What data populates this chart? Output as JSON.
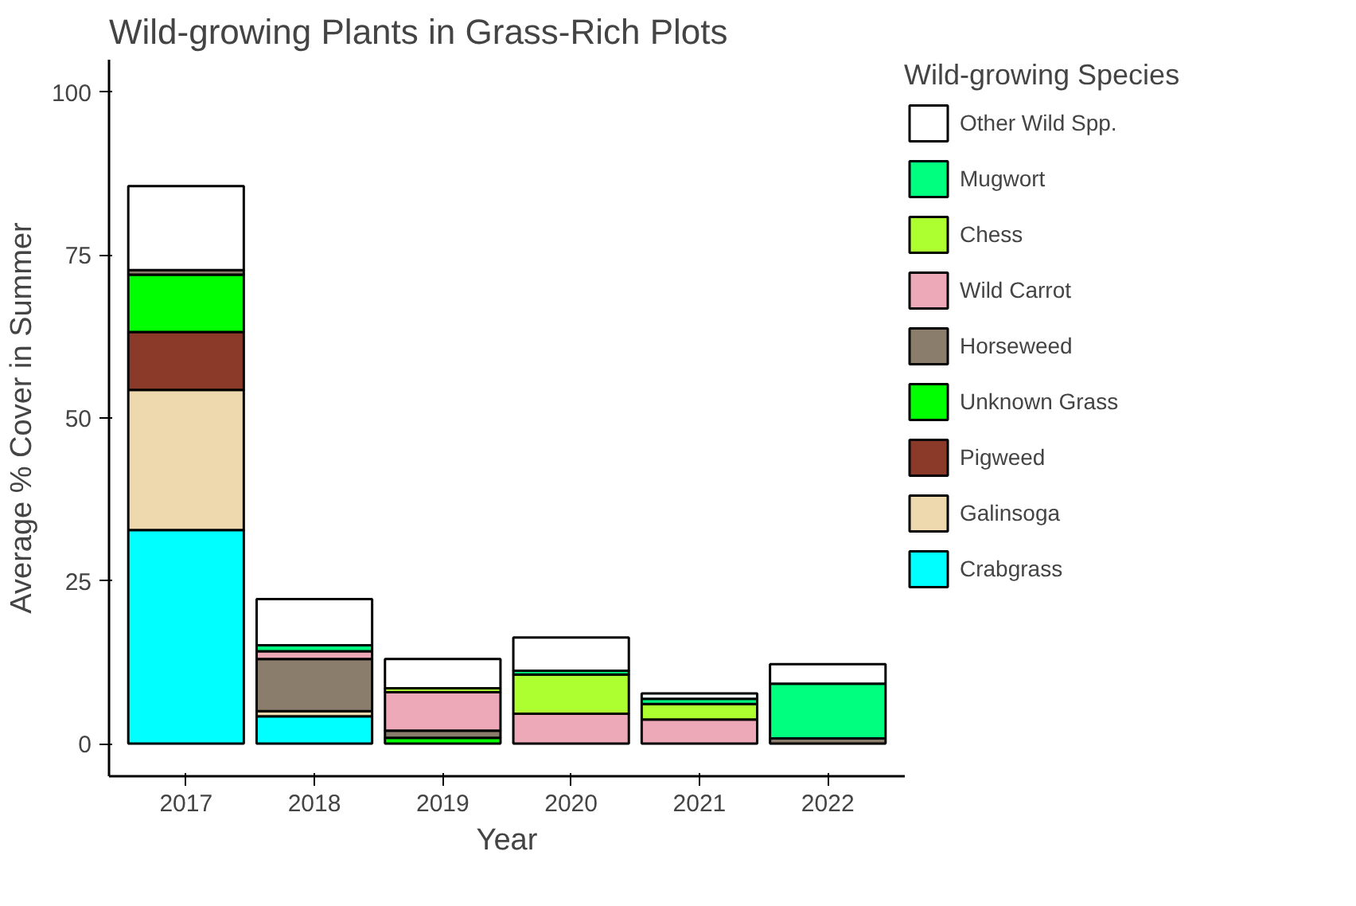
{
  "chart_data": {
    "type": "bar",
    "stacked": true,
    "title": "Wild-growing Plants in Grass-Rich Plots",
    "xlabel": "Year",
    "ylabel": "Average % Cover in Summer",
    "legend_title": "Wild-growing Species",
    "legend": "right",
    "grid": false,
    "categories": [
      "2017",
      "2018",
      "2019",
      "2020",
      "2021",
      "2022"
    ],
    "ylim": [
      -5,
      105
    ],
    "yticks": [
      0,
      25,
      50,
      75,
      100
    ],
    "series": [
      {
        "name": "Crabgrass",
        "color": "#00ffff",
        "values": [
          32.8,
          4.2,
          null,
          null,
          null,
          null
        ]
      },
      {
        "name": "Galinsoga",
        "color": "#eed8ae",
        "values": [
          21.5,
          0.8,
          null,
          null,
          null,
          null
        ]
      },
      {
        "name": "Pigweed",
        "color": "#8b3a2a",
        "values": [
          8.9,
          null,
          null,
          null,
          null,
          null
        ]
      },
      {
        "name": "Unknown Grass",
        "color": "#00ff00",
        "values": [
          8.8,
          null,
          0.9,
          null,
          null,
          null
        ]
      },
      {
        "name": "Horseweed",
        "color": "#8b7d6b",
        "values": [
          0.7,
          8.0,
          1.1,
          null,
          null,
          0.8
        ]
      },
      {
        "name": "Wild Carrot",
        "color": "#eea9b8",
        "values": [
          null,
          1.2,
          5.9,
          4.6,
          3.7,
          null
        ]
      },
      {
        "name": "Chess",
        "color": "#adff2f",
        "values": [
          null,
          null,
          0.6,
          6.0,
          2.4,
          null
        ]
      },
      {
        "name": "Mugwort",
        "color": "#00ff7f",
        "values": [
          null,
          0.9,
          null,
          0.6,
          0.8,
          8.4
        ]
      },
      {
        "name": "Other Wild Spp.",
        "color": "#ffffff",
        "values": [
          12.9,
          7.1,
          4.5,
          5.1,
          0.8,
          3.0
        ]
      }
    ]
  }
}
